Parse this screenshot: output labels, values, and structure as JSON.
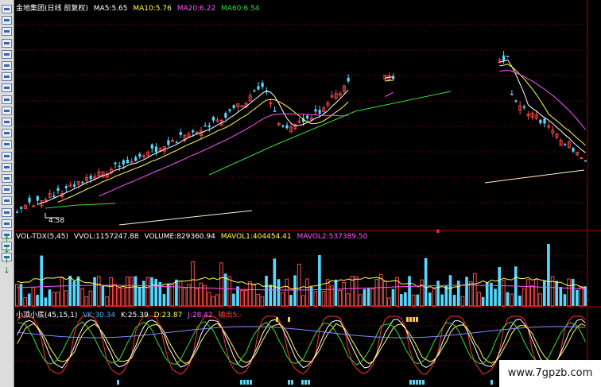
{
  "header_main": {
    "title": "金地集团(日线 前复权)",
    "ma5": "MA5:5.65",
    "ma10": "MA10:5.76",
    "ma20": "MA20:6.22",
    "ma60": "MA60:6.54"
  },
  "header_vol": {
    "name": "VOL-TDX(5,45)",
    "vvol": "VVOL:1157247.88",
    "volume": "VOLUME:829360.94",
    "mavol1": "MAVOL1:404454.41",
    "mavol2": "MAVOL2:537389.50"
  },
  "header_kdj": {
    "name": "小顶小底(45,15,1)",
    "vk": "VK:30.34",
    "k": "K:25.39",
    "d": "D:23.87",
    "j": "J:28.42",
    "signal": "输出5:-"
  },
  "low_label": "4.58",
  "watermark": "www.7gpzb.com",
  "colors": {
    "up": "#ff4a4a",
    "down": "#55d8ff",
    "ma5": "#ffffff",
    "ma10": "#ffff55",
    "ma20": "#ff55ff",
    "ma60": "#33dd33",
    "grid": "#7a0000"
  },
  "toolbar": {
    "icons": [
      "chart-icon",
      "chart-icon",
      "chart-icon",
      "chart-icon",
      "chart-icon",
      "chart-icon",
      "chart-icon",
      "chart-icon",
      "chart-icon",
      "chart-icon",
      "chart-icon",
      "chart-icon",
      "chart-icon",
      "chart-icon",
      "chart-icon",
      "chart-icon",
      "chart-icon",
      "chart-icon",
      "chart-icon",
      "chart-icon",
      "chart-icon",
      "chart-icon",
      "chart-icon"
    ]
  },
  "chart_data": [
    {
      "type": "candlestick",
      "title": "金地集团(日线 前复权)",
      "series": [
        {
          "name": "MA5",
          "value": 5.65
        },
        {
          "name": "MA10",
          "value": 5.76
        },
        {
          "name": "MA20",
          "value": 6.22
        },
        {
          "name": "MA60",
          "value": 6.54
        }
      ],
      "annotations": [
        {
          "text": "4.58"
        }
      ]
    },
    {
      "type": "bar",
      "title": "VOL-TDX(5,45)",
      "series": [
        {
          "name": "VVOL",
          "value": 1157247.88
        },
        {
          "name": "VOLUME",
          "value": 829360.94
        },
        {
          "name": "MAVOL1",
          "value": 404454.41
        },
        {
          "name": "MAVOL2",
          "value": 537389.5
        }
      ]
    },
    {
      "type": "line",
      "title": "小顶小底(45,15,1)",
      "series": [
        {
          "name": "VK",
          "value": 30.34
        },
        {
          "name": "K",
          "value": 25.39
        },
        {
          "name": "D",
          "value": 23.87
        },
        {
          "name": "J",
          "value": 28.42
        }
      ]
    }
  ]
}
